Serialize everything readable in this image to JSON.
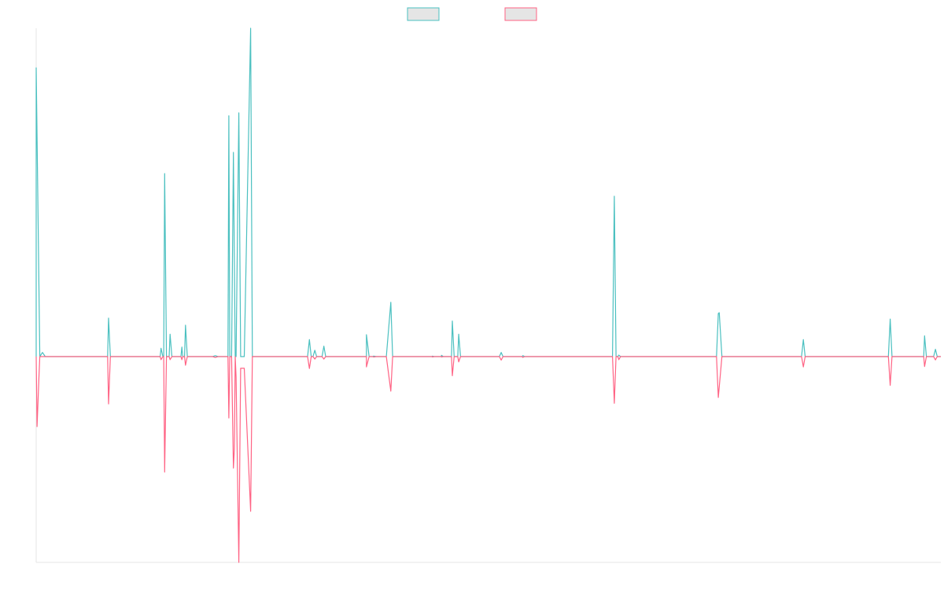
{
  "chart_data": {
    "type": "line",
    "title": "",
    "xlabel": "",
    "ylabel": "",
    "ylim": [
      -100,
      100
    ],
    "xlim": [
      0,
      1000
    ],
    "grid": false,
    "legend": "top-center",
    "series": [
      {
        "color": "#4bc0c0",
        "fill": "#e5e5e5",
        "points": [
          [
            0,
            0
          ],
          [
            0,
            118.5
          ],
          [
            4,
            0
          ],
          [
            7,
            1.7
          ],
          [
            10,
            0
          ],
          [
            79,
            0
          ],
          [
            80,
            15.8
          ],
          [
            82,
            0
          ],
          [
            137,
            0
          ],
          [
            138,
            3.4
          ],
          [
            140,
            0
          ],
          [
            141,
            0
          ],
          [
            142,
            75.1
          ],
          [
            144,
            0
          ],
          [
            147,
            0
          ],
          [
            148,
            9.2
          ],
          [
            150,
            0
          ],
          [
            160,
            0
          ],
          [
            161,
            3.9
          ],
          [
            162,
            0
          ],
          [
            164,
            0
          ],
          [
            165,
            12.9
          ],
          [
            167,
            0
          ],
          [
            195,
            0
          ],
          [
            198,
            0.4
          ],
          [
            201,
            0
          ],
          [
            212,
            0
          ],
          [
            213,
            98.8
          ],
          [
            214,
            0
          ],
          [
            216,
            0
          ],
          [
            218,
            83.8
          ],
          [
            220,
            0
          ],
          [
            221,
            0
          ],
          [
            224,
            100
          ],
          [
            226,
            0
          ],
          [
            230,
            0
          ],
          [
            237,
            134.7
          ],
          [
            239,
            0
          ],
          [
            300,
            0
          ],
          [
            302,
            7.0
          ],
          [
            304,
            0
          ],
          [
            306,
            0
          ],
          [
            308,
            2.6
          ],
          [
            310,
            0
          ],
          [
            316,
            0
          ],
          [
            318,
            4.3
          ],
          [
            320,
            0
          ],
          [
            365,
            0
          ],
          [
            365,
            9.0
          ],
          [
            368,
            0
          ],
          [
            372,
            0
          ],
          [
            373,
            0.2
          ],
          [
            376,
            0
          ],
          [
            387,
            0
          ],
          [
            392,
            22.3
          ],
          [
            394,
            0
          ],
          [
            438,
            0
          ],
          [
            438,
            0.2
          ],
          [
            440,
            0
          ],
          [
            448,
            0
          ],
          [
            448,
            0.5
          ],
          [
            450,
            0
          ],
          [
            459,
            0
          ],
          [
            460,
            14.6
          ],
          [
            462,
            0
          ],
          [
            466,
            0
          ],
          [
            467,
            9.2
          ],
          [
            469,
            0
          ],
          [
            512,
            0
          ],
          [
            514,
            1.7
          ],
          [
            516,
            0
          ],
          [
            537,
            0
          ],
          [
            538,
            0.4
          ],
          [
            540,
            0
          ],
          [
            637,
            0
          ],
          [
            639,
            65.8
          ],
          [
            641,
            0
          ],
          [
            643,
            0
          ],
          [
            644,
            0.6
          ],
          [
            646,
            0
          ],
          [
            752,
            0
          ],
          [
            754,
            17.7
          ],
          [
            755,
            18.0
          ],
          [
            758,
            0
          ],
          [
            846,
            0
          ],
          [
            848,
            7.0
          ],
          [
            850,
            0
          ],
          [
            942,
            0
          ],
          [
            944,
            15.4
          ],
          [
            946,
            0
          ],
          [
            981,
            0
          ],
          [
            982,
            8.5
          ],
          [
            984,
            0
          ],
          [
            992,
            0
          ],
          [
            994,
            3.0
          ],
          [
            996,
            0
          ],
          [
            1000,
            0
          ]
        ]
      },
      {
        "color": "#ff6384",
        "fill": "#e5e5e5",
        "points": [
          [
            0,
            0
          ],
          [
            1,
            -34.0
          ],
          [
            3,
            -10.0
          ],
          [
            4,
            0
          ],
          [
            7,
            0
          ],
          [
            10,
            0
          ],
          [
            79,
            0
          ],
          [
            80,
            -23.0
          ],
          [
            82,
            0
          ],
          [
            137,
            0
          ],
          [
            138,
            -1.5
          ],
          [
            140,
            0
          ],
          [
            141,
            0
          ],
          [
            142,
            -56.1
          ],
          [
            144,
            0
          ],
          [
            147,
            0
          ],
          [
            148,
            -1.5
          ],
          [
            150,
            0
          ],
          [
            160,
            0
          ],
          [
            161,
            -1.5
          ],
          [
            162,
            0
          ],
          [
            164,
            0
          ],
          [
            165,
            -4.2
          ],
          [
            167,
            0
          ],
          [
            195,
            0
          ],
          [
            198,
            -0.4
          ],
          [
            201,
            0
          ],
          [
            212,
            0
          ],
          [
            213,
            -29.8
          ],
          [
            214,
            0
          ],
          [
            216,
            0
          ],
          [
            218,
            -54.2
          ],
          [
            219,
            -45.0
          ],
          [
            220,
            0
          ],
          [
            221,
            -10.0
          ],
          [
            224,
            -100
          ],
          [
            226,
            -5.7
          ],
          [
            230,
            -5.7
          ],
          [
            237,
            -75.2
          ],
          [
            239,
            0
          ],
          [
            300,
            0
          ],
          [
            302,
            -5.8
          ],
          [
            304,
            0
          ],
          [
            306,
            0
          ],
          [
            308,
            -1.2
          ],
          [
            310,
            0
          ],
          [
            316,
            0
          ],
          [
            318,
            -1.2
          ],
          [
            320,
            0
          ],
          [
            365,
            0
          ],
          [
            365,
            -5.0
          ],
          [
            368,
            0
          ],
          [
            372,
            0
          ],
          [
            373,
            -0.2
          ],
          [
            376,
            0
          ],
          [
            387,
            0
          ],
          [
            392,
            -16.8
          ],
          [
            394,
            0
          ],
          [
            438,
            0
          ],
          [
            438,
            -0.2
          ],
          [
            440,
            0
          ],
          [
            448,
            0
          ],
          [
            448,
            -0.2
          ],
          [
            450,
            0
          ],
          [
            459,
            0
          ],
          [
            460,
            -9.3
          ],
          [
            462,
            0
          ],
          [
            466,
            0
          ],
          [
            467,
            -2.6
          ],
          [
            469,
            0
          ],
          [
            512,
            0
          ],
          [
            514,
            -1.7
          ],
          [
            516,
            0
          ],
          [
            537,
            0
          ],
          [
            538,
            -0.4
          ],
          [
            540,
            0
          ],
          [
            637,
            0
          ],
          [
            639,
            -22.7
          ],
          [
            641,
            0
          ],
          [
            643,
            0
          ],
          [
            644,
            -1.5
          ],
          [
            646,
            0
          ],
          [
            752,
            0
          ],
          [
            754,
            -19.9
          ],
          [
            758,
            0
          ],
          [
            846,
            0
          ],
          [
            848,
            -5.0
          ],
          [
            850,
            0
          ],
          [
            942,
            0
          ],
          [
            944,
            -14.0
          ],
          [
            946,
            0
          ],
          [
            981,
            0
          ],
          [
            982,
            -4.8
          ],
          [
            984,
            0
          ],
          [
            992,
            0
          ],
          [
            994,
            -1.6
          ],
          [
            996,
            0
          ],
          [
            1000,
            0
          ]
        ]
      }
    ]
  }
}
